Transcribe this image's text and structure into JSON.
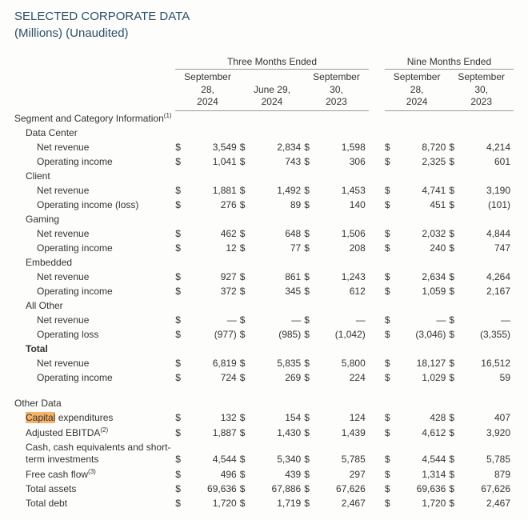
{
  "header": {
    "title": "SELECTED CORPORATE DATA",
    "subtitle": "(Millions) (Unaudited)"
  },
  "group_headers": {
    "three": "Three Months Ended",
    "nine": "Nine Months Ended"
  },
  "columns": {
    "c1a": "September",
    "c1b": "28,",
    "c1c": "2024",
    "c2a": "June 29,",
    "c2b": "2024",
    "c2c": "",
    "c3a": "September",
    "c3b": "30,",
    "c3c": "2023",
    "c4a": "September",
    "c4b": "28,",
    "c4c": "2024",
    "c5a": "September",
    "c5b": "30,",
    "c5c": "2023"
  },
  "labels": {
    "segment": "Segment and Category Information",
    "data_center": "Data Center",
    "client": "Client",
    "gaming": "Gaming",
    "embedded": "Embedded",
    "all_other": "All Other",
    "total": "Total",
    "net_revenue": "Net revenue",
    "operating_income": "Operating income",
    "operating_income_loss": "Operating income (loss)",
    "operating_loss": "Operating loss",
    "other_data": "Other Data",
    "capex_hl": "Capital",
    "capex_rest": " expenditures",
    "adj_ebitda": "Adjusted EBITDA",
    "cash": "Cash, cash equivalents and short-term investments",
    "fcf": "Free cash flow",
    "total_assets": "Total assets",
    "total_debt": "Total debt"
  },
  "cur": "$",
  "dash": "—",
  "values": {
    "dc_rev": [
      "3,549",
      "2,834",
      "1,598",
      "8,720",
      "4,214"
    ],
    "dc_inc": [
      "1,041",
      "743",
      "306",
      "2,325",
      "601"
    ],
    "cl_rev": [
      "1,881",
      "1,492",
      "1,453",
      "4,741",
      "3,190"
    ],
    "cl_inc": [
      "276",
      "89",
      "140",
      "451",
      "(101)"
    ],
    "gm_rev": [
      "462",
      "648",
      "1,506",
      "2,032",
      "4,844"
    ],
    "gm_inc": [
      "12",
      "77",
      "208",
      "240",
      "747"
    ],
    "em_rev": [
      "927",
      "861",
      "1,243",
      "2,634",
      "4,264"
    ],
    "em_inc": [
      "372",
      "345",
      "612",
      "1,059",
      "2,167"
    ],
    "ao_rev": [
      "—",
      "—",
      "—",
      "—",
      "—"
    ],
    "ao_loss": [
      "(977)",
      "(985)",
      "(1,042)",
      "(3,046)",
      "(3,355)"
    ],
    "tot_rev": [
      "6,819",
      "5,835",
      "5,800",
      "18,127",
      "16,512"
    ],
    "tot_inc": [
      "724",
      "269",
      "224",
      "1,029",
      "59"
    ],
    "capex": [
      "132",
      "154",
      "124",
      "428",
      "407"
    ],
    "ebitda": [
      "1,887",
      "1,430",
      "1,439",
      "4,612",
      "3,920"
    ],
    "cash": [
      "4,544",
      "5,340",
      "5,785",
      "4,544",
      "5,785"
    ],
    "fcf": [
      "496",
      "439",
      "297",
      "1,314",
      "879"
    ],
    "assets": [
      "69,636",
      "67,886",
      "67,626",
      "69,636",
      "67,626"
    ],
    "debt": [
      "1,720",
      "1,719",
      "2,467",
      "1,720",
      "2,467"
    ]
  },
  "sup": {
    "one": "(1)",
    "two": "(2)",
    "three": "(3)"
  }
}
